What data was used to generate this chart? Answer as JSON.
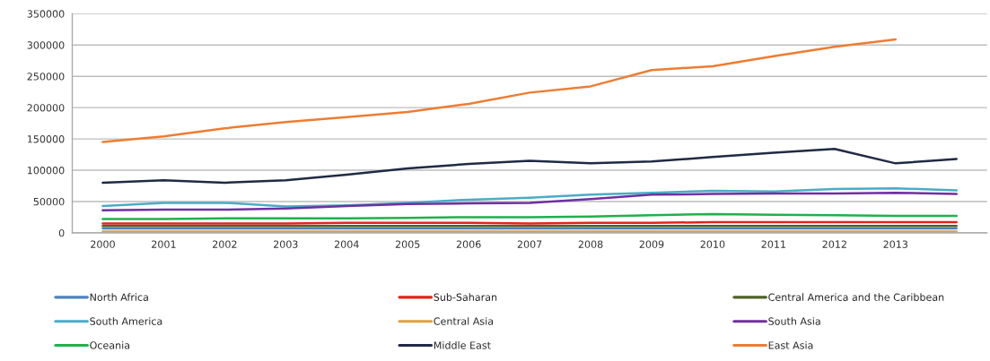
{
  "chart_data": {
    "type": "line",
    "categories": [
      "2000",
      "2001",
      "2002",
      "2003",
      "2004",
      "2005",
      "2006",
      "2007",
      "2008",
      "2009",
      "2010",
      "2011",
      "2012",
      "2013",
      null
    ],
    "series": [
      {
        "name": "North Africa",
        "color": "#4f81bd",
        "values": [
          7000,
          7000,
          7000,
          7000,
          7000,
          7000,
          7000,
          7000,
          7000,
          7000,
          7000,
          7000,
          7000,
          7000,
          7000
        ]
      },
      {
        "name": "Sub-Saharan",
        "color": "#e3231b",
        "values": [
          15000,
          15000,
          15000,
          15000,
          16000,
          16000,
          16000,
          15000,
          16000,
          16000,
          17000,
          17000,
          17000,
          17000,
          17000
        ]
      },
      {
        "name": "Central America and the Caribbean",
        "color": "#4f6228",
        "values": [
          11000,
          11000,
          11000,
          11000,
          11000,
          11000,
          11000,
          11000,
          11000,
          11000,
          11000,
          11000,
          11000,
          11000,
          11000
        ]
      },
      {
        "name": "South America",
        "color": "#4bacc6",
        "values": [
          43000,
          48000,
          48000,
          42000,
          44000,
          48000,
          53000,
          56000,
          61000,
          64000,
          67000,
          66000,
          70000,
          71000,
          68000
        ]
      },
      {
        "name": "Central Asia",
        "color": "#e0a040",
        "values": [
          2000,
          2000,
          2000,
          2000,
          2000,
          2000,
          2000,
          2000,
          2000,
          2000,
          2000,
          2000,
          2000,
          2000,
          2000
        ]
      },
      {
        "name": "South Asia",
        "color": "#7030a0",
        "values": [
          36000,
          37000,
          37000,
          39000,
          43000,
          46000,
          47000,
          48000,
          54000,
          61000,
          62000,
          63000,
          63000,
          64000,
          62000
        ]
      },
      {
        "name": "Oceania",
        "color": "#21b04b",
        "values": [
          22000,
          22000,
          23000,
          23000,
          23000,
          24000,
          25000,
          25000,
          26000,
          28000,
          30000,
          29000,
          28000,
          27000,
          27000
        ]
      },
      {
        "name": "Middle East",
        "color": "#1f2a44",
        "values": [
          80000,
          84000,
          80000,
          84000,
          93000,
          103000,
          110000,
          115000,
          111000,
          114000,
          121000,
          128000,
          134000,
          111000,
          118000
        ]
      },
      {
        "name": "East Asia",
        "color": "#ed7d31",
        "values": [
          145000,
          154000,
          167000,
          177000,
          185000,
          193000,
          206000,
          224000,
          234000,
          260000,
          266000,
          282000,
          297000,
          309000,
          null
        ]
      }
    ],
    "ylim": [
      0,
      350000
    ],
    "yticks": [
      0,
      50000,
      100000,
      150000,
      200000,
      250000,
      300000,
      350000
    ],
    "grid": "y",
    "legend": "bottom"
  }
}
